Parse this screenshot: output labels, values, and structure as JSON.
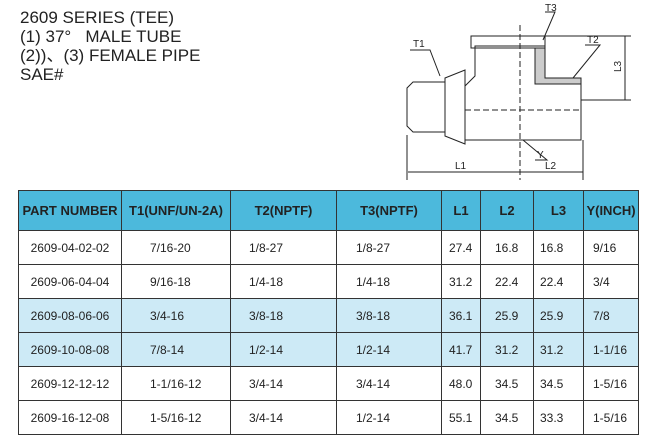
{
  "header": {
    "lines": [
      "2609 SERIES (TEE)",
      "(1) 37°   MALE TUBE",
      "(2))、(3) FEMALE PIPE",
      "SAE#"
    ]
  },
  "drawing": {
    "labels": {
      "t1": "T1",
      "t2": "T2",
      "t3": "T3",
      "l1": "L1",
      "l2": "L2",
      "l3": "L3",
      "y": "Y"
    }
  },
  "table": {
    "columns": [
      "PART NUMBER",
      "T1(UNF/UN-2A)",
      "T2(NPTF)",
      "T3(NPTF)",
      "L1",
      "L2",
      "L3",
      "Y(INCH)"
    ],
    "rows": [
      [
        "2609-04-02-02",
        "7/16-20",
        "1/8-27",
        "1/8-27",
        "27.4",
        "16.8",
        "16.8",
        "9/16"
      ],
      [
        "2609-06-04-04",
        "9/16-18",
        "1/4-18",
        "1/4-18",
        "31.2",
        "22.4",
        "22.4",
        "3/4"
      ],
      [
        "2609-08-06-06",
        "3/4-16",
        "3/8-18",
        "3/8-18",
        "36.1",
        "25.9",
        "25.9",
        "7/8"
      ],
      [
        "2609-10-08-08",
        "7/8-14",
        "1/2-14",
        "1/2-14",
        "41.7",
        "31.2",
        "31.2",
        "1-1/16"
      ],
      [
        "2609-12-12-12",
        "1-1/16-12",
        "3/4-14",
        "3/4-14",
        "48.0",
        "34.5",
        "34.5",
        "1-5/16"
      ],
      [
        "2609-16-12-08",
        "1-5/16-12",
        "3/4-14",
        "1/2-14",
        "55.1",
        "34.5",
        "33.3",
        "1-5/16"
      ]
    ]
  }
}
